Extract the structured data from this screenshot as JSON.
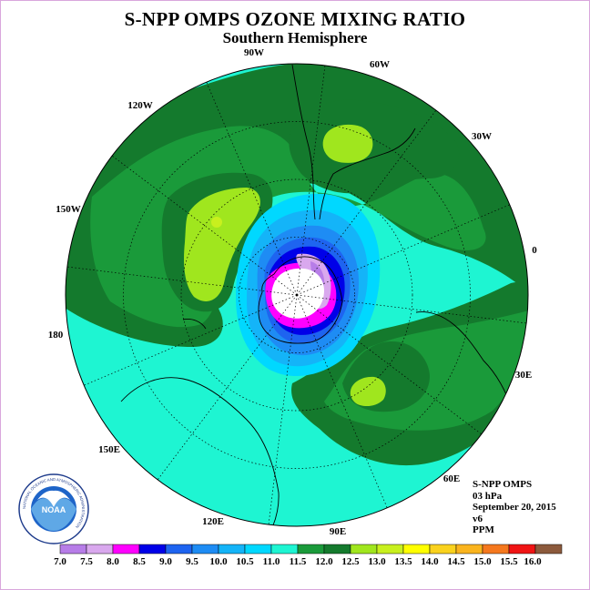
{
  "title": "S-NPP OMPS OZONE MIXING RATIO",
  "subtitle": "Southern Hemisphere",
  "longitude_labels": [
    {
      "id": "lon-90w",
      "text": "90W"
    },
    {
      "id": "lon-60w",
      "text": "60W"
    },
    {
      "id": "lon-120w",
      "text": "120W"
    },
    {
      "id": "lon-30w",
      "text": "30W"
    },
    {
      "id": "lon-150w",
      "text": "150W"
    },
    {
      "id": "lon-0",
      "text": "0"
    },
    {
      "id": "lon-180",
      "text": "180"
    },
    {
      "id": "lon-30e",
      "text": "30E"
    },
    {
      "id": "lon-150e",
      "text": "150E"
    },
    {
      "id": "lon-60e",
      "text": "60E"
    },
    {
      "id": "lon-120e",
      "text": "120E"
    },
    {
      "id": "lon-90e",
      "text": "90E"
    }
  ],
  "info": {
    "instrument": "S-NPP OMPS",
    "level": "03 hPa",
    "date": "September 20, 2015",
    "version": "v6",
    "units": "PPM"
  },
  "logo": {
    "text": "NOAA",
    "ring_text": "NATIONAL OCEANIC AND ATMOSPHERIC ADMINISTRATION"
  },
  "colorbar": {
    "ticks": [
      "7.0",
      "7.5",
      "8.0",
      "8.5",
      "9.0",
      "9.5",
      "10.0",
      "10.5",
      "11.0",
      "11.5",
      "12.0",
      "12.5",
      "13.0",
      "13.5",
      "14.0",
      "14.5",
      "15.0",
      "15.5",
      "16.0"
    ],
    "colors": [
      "#b77de8",
      "#d9a8ee",
      "#ff00ff",
      "#0000e8",
      "#1e64f0",
      "#1e8cf4",
      "#14b4f8",
      "#00d8ff",
      "#1ef5d2",
      "#1a9a3a",
      "#147a2d",
      "#a0e61e",
      "#c8f01e",
      "#ffff00",
      "#fad21e",
      "#fab41e",
      "#f5781e",
      "#f01414",
      "#8c5a3c"
    ]
  },
  "map_colors": {
    "background": "#1ef5d2",
    "dark_green": "#147a2d",
    "green": "#1a9a3a",
    "lime": "#a0e61e",
    "cyan": "#00d8ff",
    "lightblue": "#14b4f8",
    "blue": "#1e8cf4",
    "mid_blue": "#1e64f0",
    "navy": "#0000e8",
    "magenta": "#ff00ff",
    "lilac": "#d9a8ee",
    "purple": "#b77de8"
  }
}
